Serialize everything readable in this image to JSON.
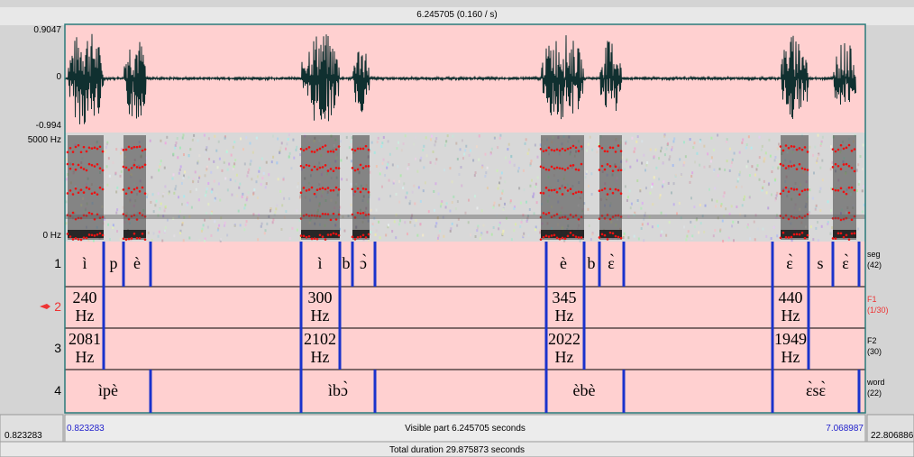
{
  "top_bar": "6.245705 (0.160 / s)",
  "waveform": {
    "max": "0.9047",
    "zero": "0",
    "min": "-0.994"
  },
  "spectrogram": {
    "max": "5000 Hz",
    "min": "0 Hz"
  },
  "tiers": [
    {
      "number": "1",
      "name": "seg",
      "count": "(42)",
      "intervals": [
        "ì",
        "p",
        "è",
        "ì",
        "b",
        "ɔ̀",
        "è",
        "b",
        "ɛ̀",
        "ɛ̀",
        "s",
        "ɛ̀"
      ]
    },
    {
      "number": "2",
      "name": "F1",
      "count": "(1/30)",
      "intervals": [
        "240 Hz",
        "300 Hz",
        "345 Hz",
        "440 Hz"
      ]
    },
    {
      "number": "3",
      "name": "F2",
      "count": "(30)",
      "intervals": [
        "2081 Hz",
        "2102 Hz",
        "2022 Hz",
        "1949 Hz"
      ]
    },
    {
      "number": "4",
      "name": "word",
      "count": "(22)",
      "intervals": [
        "ìpè",
        "ìbɔ̀",
        "èbè",
        "ɛ̀sɛ̀"
      ]
    }
  ],
  "footer": {
    "window_start": "0.823283",
    "visible_start": "0.823283",
    "visible_part": "Visible part 6.245705 seconds",
    "visible_end": "7.068987",
    "window_end": "22.806886",
    "total_duration": "Total duration 29.875873 seconds"
  }
}
